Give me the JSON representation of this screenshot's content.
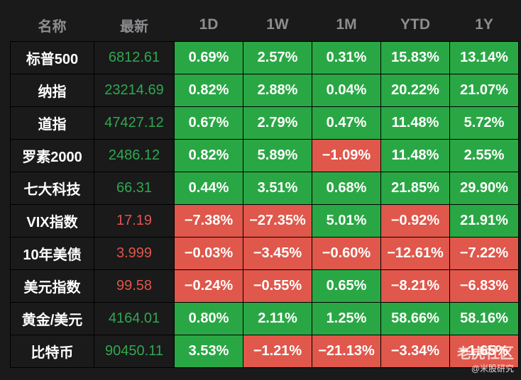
{
  "headers": [
    "名称",
    "最新",
    "1D",
    "1W",
    "1M",
    "YTD",
    "1Y"
  ],
  "rows": [
    {
      "name": "标普500",
      "last": "6812.61",
      "last_dir": "up",
      "changes": [
        "0.69%",
        "2.57%",
        "0.31%",
        "15.83%",
        "13.14%"
      ]
    },
    {
      "name": "纳指",
      "last": "23214.69",
      "last_dir": "up",
      "changes": [
        "0.82%",
        "2.88%",
        "0.04%",
        "20.22%",
        "21.07%"
      ]
    },
    {
      "name": "道指",
      "last": "47427.12",
      "last_dir": "up",
      "changes": [
        "0.67%",
        "2.79%",
        "0.47%",
        "11.48%",
        "5.72%"
      ]
    },
    {
      "name": "罗素2000",
      "last": "2486.12",
      "last_dir": "up",
      "changes": [
        "0.82%",
        "5.89%",
        "−1.09%",
        "11.48%",
        "2.55%"
      ]
    },
    {
      "name": "七大科技",
      "last": "66.31",
      "last_dir": "up",
      "changes": [
        "0.44%",
        "3.51%",
        "0.68%",
        "21.85%",
        "29.90%"
      ]
    },
    {
      "name": "VIX指数",
      "last": "17.19",
      "last_dir": "down",
      "changes": [
        "−7.38%",
        "−27.35%",
        "5.01%",
        "−0.92%",
        "21.91%"
      ]
    },
    {
      "name": "10年美债",
      "last": "3.999",
      "last_dir": "down",
      "changes": [
        "−0.03%",
        "−3.45%",
        "−0.60%",
        "−12.61%",
        "−7.22%"
      ]
    },
    {
      "name": "美元指数",
      "last": "99.58",
      "last_dir": "down",
      "changes": [
        "−0.24%",
        "−0.55%",
        "0.65%",
        "−8.21%",
        "−6.83%"
      ]
    },
    {
      "name": "黄金/美元",
      "last": "4164.01",
      "last_dir": "up",
      "changes": [
        "0.80%",
        "2.11%",
        "1.25%",
        "58.66%",
        "58.16%"
      ]
    },
    {
      "name": "比特币",
      "last": "90450.11",
      "last_dir": "up",
      "changes": [
        "3.53%",
        "−1.21%",
        "−21.13%",
        "−3.34%",
        "−1.65%"
      ]
    }
  ],
  "colors": {
    "background": "#1a1a1b",
    "positive": "#2aa745",
    "negative": "#e0574b",
    "header_text": "#8d8d8f"
  },
  "watermark": {
    "top": "老虎社区",
    "bottom": "@米股研究"
  }
}
